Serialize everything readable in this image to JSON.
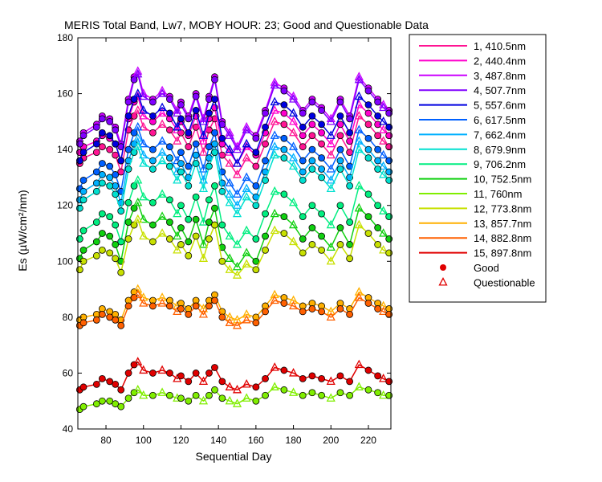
{
  "chart_data": {
    "type": "line",
    "title": "MERIS Total Band,  Lw7, MOBY HOUR: 23;  Good and Questionable Data",
    "xlabel": "Sequential Day",
    "ylabel": "Es (µW/cm²/nm)",
    "xlim": [
      65,
      232
    ],
    "ylim": [
      40,
      180
    ],
    "xticks": [
      80,
      100,
      120,
      140,
      160,
      180,
      200,
      220
    ],
    "yticks": [
      40,
      60,
      80,
      100,
      120,
      140,
      160,
      180
    ],
    "grid": false,
    "legend_position": "right",
    "x": [
      66,
      68,
      75,
      78,
      82,
      85,
      88,
      92,
      95,
      97,
      100,
      105,
      110,
      114,
      118,
      120,
      124,
      128,
      132,
      135,
      138,
      142,
      146,
      150,
      155,
      160,
      165,
      170,
      175,
      180,
      185,
      190,
      195,
      200,
      205,
      210,
      215,
      220,
      225,
      228,
      231
    ],
    "series": [
      {
        "name": "1, 410.5nm",
        "color": "#ff1493",
        "values": [
          135,
          137,
          139,
          141,
          140,
          138,
          132,
          147,
          152,
          154,
          148,
          146,
          149,
          147,
          143,
          146,
          141,
          148,
          139,
          147,
          151,
          138,
          135,
          131,
          137,
          134,
          142,
          150,
          149,
          146,
          141,
          145,
          142,
          138,
          145,
          139,
          152,
          149,
          145,
          143,
          141
        ]
      },
      {
        "name": "2, 440.4nm",
        "color": "#ff00cc",
        "values": [
          139,
          141,
          143,
          145,
          144,
          142,
          136,
          151,
          157,
          159,
          152,
          150,
          153,
          151,
          147,
          150,
          145,
          152,
          143,
          151,
          155,
          142,
          139,
          135,
          141,
          138,
          146,
          154,
          153,
          150,
          145,
          149,
          146,
          142,
          149,
          143,
          156,
          153,
          149,
          147,
          145
        ]
      },
      {
        "name": "3, 487.8nm",
        "color": "#cc00ff",
        "values": [
          143,
          146,
          149,
          152,
          151,
          148,
          142,
          158,
          166,
          168,
          160,
          158,
          161,
          159,
          154,
          157,
          152,
          160,
          151,
          159,
          166,
          150,
          146,
          141,
          148,
          145,
          154,
          164,
          162,
          159,
          154,
          158,
          155,
          151,
          158,
          152,
          166,
          162,
          158,
          156,
          154
        ]
      },
      {
        "name": "4, 507.7nm",
        "color": "#8000ff",
        "values": [
          142,
          145,
          148,
          151,
          150,
          147,
          141,
          157,
          165,
          167,
          159,
          157,
          160,
          158,
          153,
          156,
          151,
          159,
          150,
          158,
          165,
          149,
          145,
          140,
          147,
          144,
          153,
          163,
          161,
          158,
          153,
          157,
          154,
          150,
          157,
          151,
          165,
          161,
          157,
          155,
          153
        ]
      },
      {
        "name": "5, 557.6nm",
        "color": "#0000e0",
        "values": [
          136,
          139,
          142,
          146,
          145,
          142,
          136,
          152,
          158,
          160,
          154,
          152,
          155,
          153,
          148,
          151,
          146,
          154,
          145,
          153,
          158,
          144,
          140,
          135,
          142,
          139,
          148,
          157,
          156,
          153,
          148,
          152,
          149,
          145,
          152,
          146,
          159,
          156,
          152,
          150,
          148
        ]
      },
      {
        "name": "6, 617.5nm",
        "color": "#0060ff",
        "values": [
          126,
          129,
          132,
          135,
          134,
          131,
          125,
          140,
          146,
          148,
          142,
          140,
          143,
          141,
          136,
          139,
          134,
          142,
          133,
          141,
          146,
          132,
          128,
          124,
          130,
          127,
          136,
          145,
          144,
          141,
          136,
          140,
          137,
          133,
          140,
          134,
          147,
          144,
          140,
          138,
          136
        ]
      },
      {
        "name": "7, 662.4nm",
        "color": "#00b0ff",
        "values": [
          122,
          125,
          128,
          131,
          130,
          127,
          121,
          136,
          142,
          144,
          138,
          136,
          139,
          137,
          132,
          135,
          130,
          138,
          129,
          137,
          142,
          128,
          124,
          120,
          126,
          123,
          132,
          141,
          140,
          137,
          132,
          136,
          133,
          129,
          136,
          130,
          143,
          140,
          136,
          134,
          132
        ]
      },
      {
        "name": "8, 679.9nm",
        "color": "#00e0d0",
        "values": [
          119,
          122,
          125,
          128,
          127,
          124,
          118,
          133,
          139,
          141,
          135,
          133,
          136,
          134,
          129,
          132,
          127,
          135,
          126,
          134,
          139,
          125,
          121,
          117,
          123,
          120,
          129,
          138,
          137,
          134,
          129,
          133,
          130,
          126,
          133,
          127,
          140,
          137,
          133,
          131,
          129
        ]
      },
      {
        "name": "9, 706.2nm",
        "color": "#00ee80",
        "values": [
          108,
          111,
          114,
          117,
          116,
          113,
          107,
          121,
          127,
          129,
          123,
          121,
          124,
          122,
          117,
          120,
          115,
          123,
          114,
          122,
          127,
          113,
          109,
          106,
          111,
          108,
          117,
          125,
          124,
          121,
          116,
          120,
          117,
          113,
          120,
          114,
          127,
          124,
          120,
          118,
          116
        ]
      },
      {
        "name": "10, 752.5nm",
        "color": "#10d010",
        "values": [
          101,
          104,
          107,
          110,
          109,
          106,
          100,
          114,
          119,
          121,
          115,
          113,
          116,
          114,
          109,
          112,
          107,
          115,
          106,
          114,
          119,
          105,
          101,
          98,
          103,
          100,
          109,
          117,
          116,
          113,
          108,
          112,
          109,
          105,
          112,
          106,
          119,
          116,
          112,
          110,
          108
        ]
      },
      {
        "name": "11,   760nm",
        "color": "#80ee00",
        "values": [
          47,
          48,
          49,
          50,
          50,
          49,
          48,
          51,
          53,
          54,
          52,
          52,
          53,
          52,
          51,
          51,
          50,
          52,
          50,
          52,
          54,
          51,
          50,
          49,
          51,
          50,
          52,
          55,
          54,
          53,
          52,
          53,
          52,
          51,
          53,
          52,
          55,
          54,
          53,
          52,
          52
        ]
      },
      {
        "name": "12, 773.8nm",
        "color": "#c8e000",
        "values": [
          97,
          100,
          102,
          104,
          103,
          101,
          96,
          108,
          113,
          115,
          109,
          107,
          110,
          108,
          104,
          106,
          102,
          109,
          101,
          108,
          113,
          100,
          97,
          95,
          99,
          97,
          104,
          111,
          110,
          107,
          103,
          106,
          104,
          100,
          106,
          101,
          113,
          110,
          106,
          104,
          103
        ]
      },
      {
        "name": "13, 857.7nm",
        "color": "#ffb000",
        "values": [
          79,
          80,
          81,
          83,
          82,
          81,
          79,
          86,
          89,
          90,
          87,
          86,
          87,
          86,
          84,
          85,
          83,
          86,
          83,
          86,
          88,
          82,
          80,
          79,
          81,
          80,
          84,
          88,
          87,
          86,
          84,
          85,
          84,
          82,
          85,
          83,
          89,
          87,
          85,
          84,
          83
        ]
      },
      {
        "name": "14, 882.8nm",
        "color": "#ff6000",
        "values": [
          77,
          78,
          79,
          81,
          80,
          79,
          77,
          84,
          87,
          88,
          85,
          84,
          85,
          84,
          82,
          83,
          81,
          84,
          81,
          84,
          86,
          80,
          78,
          77,
          79,
          78,
          82,
          86,
          85,
          84,
          82,
          83,
          82,
          80,
          83,
          81,
          87,
          85,
          83,
          82,
          81
        ]
      },
      {
        "name": "15, 897.8nm",
        "color": "#e00000",
        "values": [
          54,
          55,
          56,
          58,
          57,
          56,
          54,
          60,
          63,
          64,
          61,
          60,
          61,
          60,
          58,
          59,
          57,
          60,
          57,
          60,
          62,
          57,
          55,
          54,
          56,
          55,
          58,
          62,
          61,
          60,
          58,
          59,
          58,
          57,
          59,
          57,
          63,
          61,
          59,
          58,
          57
        ]
      }
    ],
    "legend": {
      "good_label": "Good",
      "questionable_label": "Questionable"
    },
    "questionable_indices": [
      9,
      10,
      12,
      14,
      18,
      22,
      23,
      24,
      27,
      29,
      33,
      36,
      39
    ]
  }
}
